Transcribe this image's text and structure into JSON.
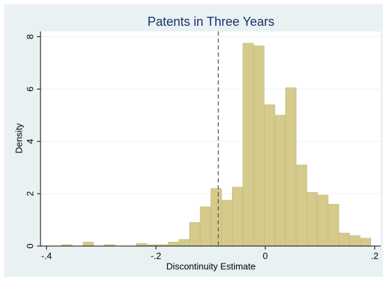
{
  "chart_data": {
    "type": "histogram",
    "title": "Patents in Three Years",
    "x_label": "Discontinuity Estimate",
    "y_label": "Density",
    "bins": [
      -0.392,
      -0.3725,
      -0.353,
      -0.3335,
      -0.314,
      -0.2945,
      -0.275,
      -0.2555,
      -0.236,
      -0.2165,
      -0.197,
      -0.1775,
      -0.158,
      -0.1385,
      -0.119,
      -0.0995,
      -0.08,
      -0.0605,
      -0.041,
      -0.0215,
      -0.002,
      0.0175,
      0.037,
      0.0565,
      0.076,
      0.0955,
      0.115,
      0.1345,
      0.154,
      0.1735,
      0.193
    ],
    "values": [
      0,
      0.05,
      0,
      0.15,
      0,
      0.05,
      0,
      0,
      0.1,
      0.05,
      0.05,
      0.15,
      0.25,
      0.9,
      1.5,
      2.2,
      1.75,
      2.25,
      7.75,
      7.65,
      5.4,
      5.0,
      6.05,
      3.1,
      2.05,
      1.95,
      1.6,
      0.5,
      0.4,
      0.3
    ],
    "color": "#d4ca8c",
    "reference_line": -0.086,
    "xlim": [
      -0.411,
      0.211
    ],
    "xticks": [
      {
        "value": -0.4,
        "label": "-.4"
      },
      {
        "value": -0.2,
        "label": "-.2"
      },
      0,
      {
        "value": 0.2,
        "label": ".2"
      }
    ],
    "ylim": [
      0,
      8.2
    ],
    "yticks": [
      0,
      2,
      4,
      6,
      8
    ],
    "grid": true
  }
}
